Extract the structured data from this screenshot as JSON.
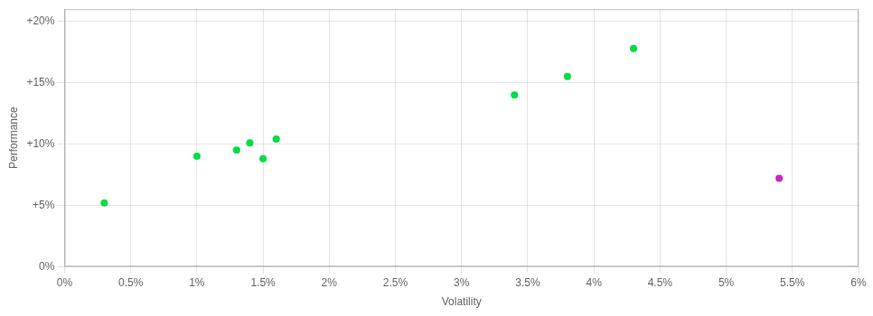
{
  "chart_data": {
    "type": "scatter",
    "x_label": "Volatility",
    "y_label": "Performance",
    "series": [
      {
        "color": "#00dd44",
        "x": [
          0.003,
          0.01,
          0.013,
          0.014,
          0.016,
          0.015,
          0.034,
          0.038,
          0.043
        ],
        "values": [
          0.052,
          0.09,
          0.095,
          0.101,
          0.104,
          0.088,
          0.14,
          0.155,
          0.178
        ]
      },
      {
        "color": "#cc22cc",
        "x": [
          0.054
        ],
        "values": [
          0.072
        ]
      }
    ],
    "xlim": [
      0,
      0.06
    ],
    "ylim": [
      0,
      0.21
    ],
    "xticks": [
      {
        "value": 0,
        "label": "0%"
      },
      {
        "value": 0.005,
        "label": "0.5%"
      },
      {
        "value": 0.01,
        "label": "1%"
      },
      {
        "value": 0.015,
        "label": "1.5%"
      },
      {
        "value": 0.02,
        "label": "2%"
      },
      {
        "value": 0.025,
        "label": "2.5%"
      },
      {
        "value": 0.03,
        "label": "3%"
      },
      {
        "value": 0.035,
        "label": "3.5%"
      },
      {
        "value": 0.04,
        "label": "4%"
      },
      {
        "value": 0.045,
        "label": "4.5%"
      },
      {
        "value": 0.05,
        "label": "5%"
      },
      {
        "value": 0.055,
        "label": "5.5%"
      },
      {
        "value": 0.06,
        "label": "6%"
      }
    ],
    "yticks": [
      {
        "value": 0,
        "label": "0%"
      },
      {
        "value": 0.05,
        "label": "+5%"
      },
      {
        "value": 0.1,
        "label": "+10%"
      },
      {
        "value": 0.15,
        "label": "+15%"
      },
      {
        "value": 0.2,
        "label": "+20%"
      }
    ],
    "grid": true
  }
}
